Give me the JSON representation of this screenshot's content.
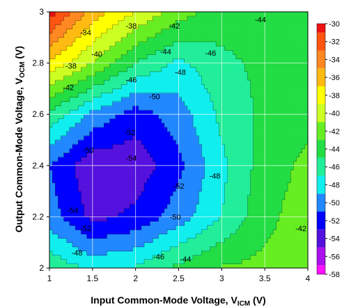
{
  "chart_data": {
    "type": "heatmap",
    "subtype": "filled-contour",
    "title": "",
    "xlabel": {
      "main": "Input Common-Mode Voltage, V",
      "sub": "ICM",
      "unit": " (V)"
    },
    "ylabel": {
      "main": "Output Common-Mode Voltage, V",
      "sub": "OCM",
      "unit": " (V)"
    },
    "xlim": [
      1,
      4
    ],
    "ylim": [
      2,
      3
    ],
    "x_ticks": [
      1,
      1.5,
      2,
      2.5,
      3,
      3.5,
      4
    ],
    "x_tick_labels": [
      "1",
      "1.5",
      "2",
      "2.5",
      "3",
      "3.5",
      "4"
    ],
    "y_ticks": [
      2,
      2.2,
      2.4,
      2.6,
      2.8,
      3
    ],
    "y_tick_labels": [
      "2",
      "2.2",
      "2.4",
      "2.6",
      "2.8",
      "3"
    ],
    "grid": true,
    "x": [
      1.0,
      1.5,
      2.0,
      2.5,
      3.0,
      3.5,
      4.0
    ],
    "y": [
      2.0,
      2.2,
      2.4,
      2.6,
      2.8,
      3.0
    ],
    "z": [
      [
        -45.5,
        -47.5,
        -46.8,
        -44.5,
        -42.8,
        -42.5,
        -42.5
      ],
      [
        -50.0,
        -53.6,
        -52.5,
        -50.0,
        -47.0,
        -43.5,
        -42.0
      ],
      [
        -51.0,
        -54.5,
        -54.3,
        -51.5,
        -47.5,
        -44.0,
        -42.5
      ],
      [
        -45.5,
        -49.5,
        -52.0,
        -50.0,
        -46.5,
        -44.5,
        -43.5
      ],
      [
        -37.5,
        -41.0,
        -45.0,
        -47.5,
        -45.5,
        -44.5,
        -43.5
      ],
      [
        -30.0,
        -36.0,
        -39.0,
        -42.0,
        -44.0,
        -44.0,
        -44.0
      ]
    ],
    "contour_labels": [
      {
        "text": "-34",
        "x": 1.42,
        "y": 2.92
      },
      {
        "text": "-38",
        "x": 1.95,
        "y": 2.945
      },
      {
        "text": "-42",
        "x": 2.45,
        "y": 2.945
      },
      {
        "text": "-44",
        "x": 3.45,
        "y": 2.97
      },
      {
        "text": "-40",
        "x": 1.55,
        "y": 2.835
      },
      {
        "text": "-44",
        "x": 2.35,
        "y": 2.845
      },
      {
        "text": "-46",
        "x": 2.87,
        "y": 2.84
      },
      {
        "text": "-38",
        "x": 1.25,
        "y": 2.79
      },
      {
        "text": "-48",
        "x": 2.52,
        "y": 2.765
      },
      {
        "text": "-46",
        "x": 1.95,
        "y": 2.735
      },
      {
        "text": "-42",
        "x": 1.22,
        "y": 2.705
      },
      {
        "text": "-50",
        "x": 2.22,
        "y": 2.67
      },
      {
        "text": "-52",
        "x": 1.93,
        "y": 2.53
      },
      {
        "text": "-50",
        "x": 1.45,
        "y": 2.46
      },
      {
        "text": "-54",
        "x": 1.95,
        "y": 2.43
      },
      {
        "text": "-48",
        "x": 2.92,
        "y": 2.36
      },
      {
        "text": "-52",
        "x": 2.5,
        "y": 2.32
      },
      {
        "text": "-54",
        "x": 1.27,
        "y": 2.225
      },
      {
        "text": "-50",
        "x": 2.46,
        "y": 2.2
      },
      {
        "text": "-52",
        "x": 1.42,
        "y": 2.155
      },
      {
        "text": "-42",
        "x": 3.92,
        "y": 2.155
      },
      {
        "text": "-48",
        "x": 1.32,
        "y": 2.06
      },
      {
        "text": "-46",
        "x": 2.27,
        "y": 2.045
      },
      {
        "text": "-44",
        "x": 2.58,
        "y": 2.035
      }
    ],
    "colorbar": {
      "levels": [
        -30,
        -32,
        -34,
        -36,
        -38,
        -40,
        -42,
        -44,
        -46,
        -48,
        -50,
        -52,
        -54,
        -56,
        -58
      ],
      "tick_labels": [
        "-30",
        "-32",
        "-34",
        "-36",
        "-38",
        "-40",
        "-42",
        "-44",
        "-46",
        "-48",
        "-50",
        "-52",
        "-54",
        "-56",
        "-58"
      ],
      "colors": [
        "#ee1111",
        "#ff5511",
        "#ff8822",
        "#ffbb11",
        "#ffff00",
        "#ccff22",
        "#66ee22",
        "#22dd44",
        "#22ee99",
        "#11eeee",
        "#2288ff",
        "#0000ff",
        "#5511dd",
        "#aa11ee",
        "#ff11ff"
      ]
    }
  }
}
